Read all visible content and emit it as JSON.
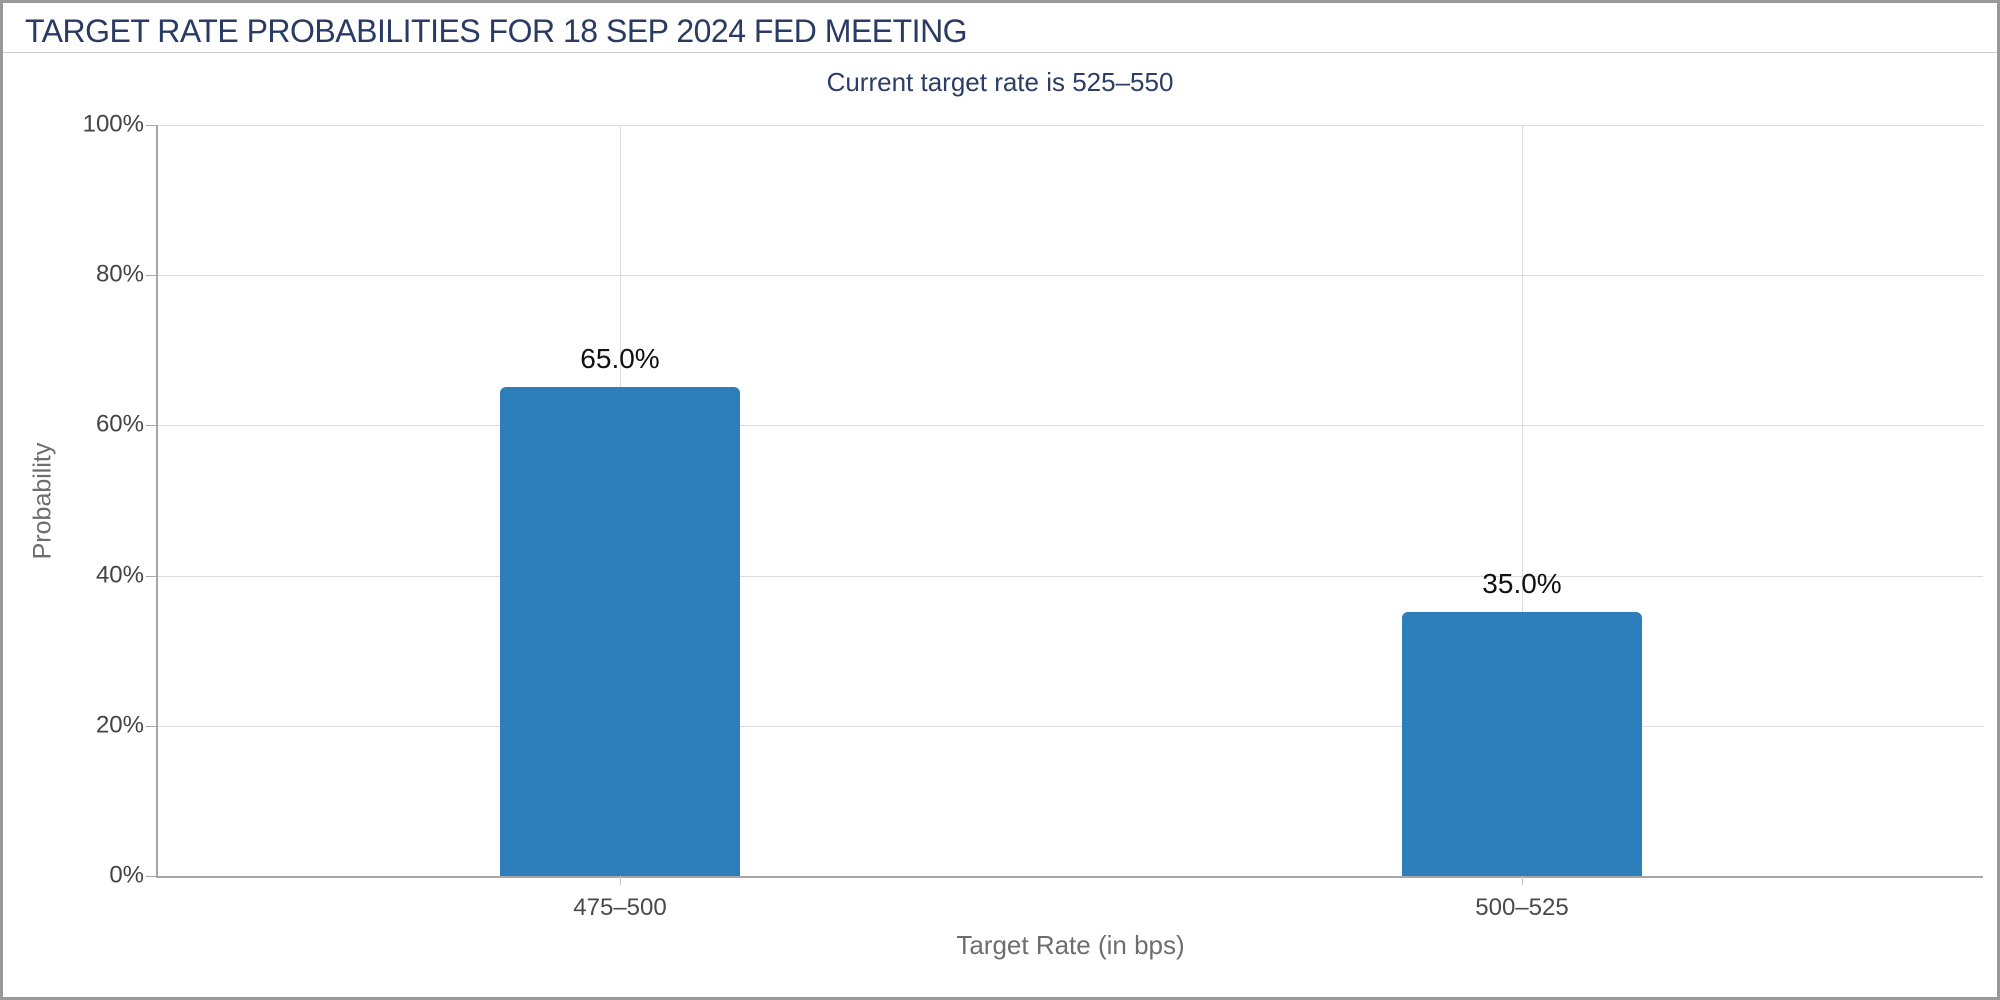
{
  "page": {
    "title": "TARGET RATE PROBABILITIES FOR 18 SEP 2024 FED MEETING",
    "subtitle": "Current target rate is 525–550"
  },
  "chart_data": {
    "type": "bar",
    "title": "TARGET RATE PROBABILITIES FOR 18 SEP 2024 FED MEETING",
    "subtitle": "Current target rate is 525–550",
    "categories": [
      "475–500",
      "500–525"
    ],
    "values": [
      65.0,
      35.0
    ],
    "value_labels": [
      "65.0%",
      "35.0%"
    ],
    "xlabel": "Target Rate (in bps)",
    "ylabel": "Probability",
    "ylim": [
      0,
      100
    ],
    "ytick_labels": [
      "100%",
      "80%",
      "60%",
      "40%",
      "20%",
      "0%"
    ],
    "grid": true,
    "legend": false,
    "bar_color": "#2d7fb9"
  },
  "colors": {
    "title_text": "#293b63",
    "subtitle_text": "#2c3e66",
    "bar": "#2d7fb9",
    "gridline": "#dcdcdc",
    "axis_line": "#a6a6a6",
    "tick_text": "#444444",
    "axis_title_text": "#6e6e6e",
    "page_border": "#999999",
    "value_label_text": "#111111"
  }
}
